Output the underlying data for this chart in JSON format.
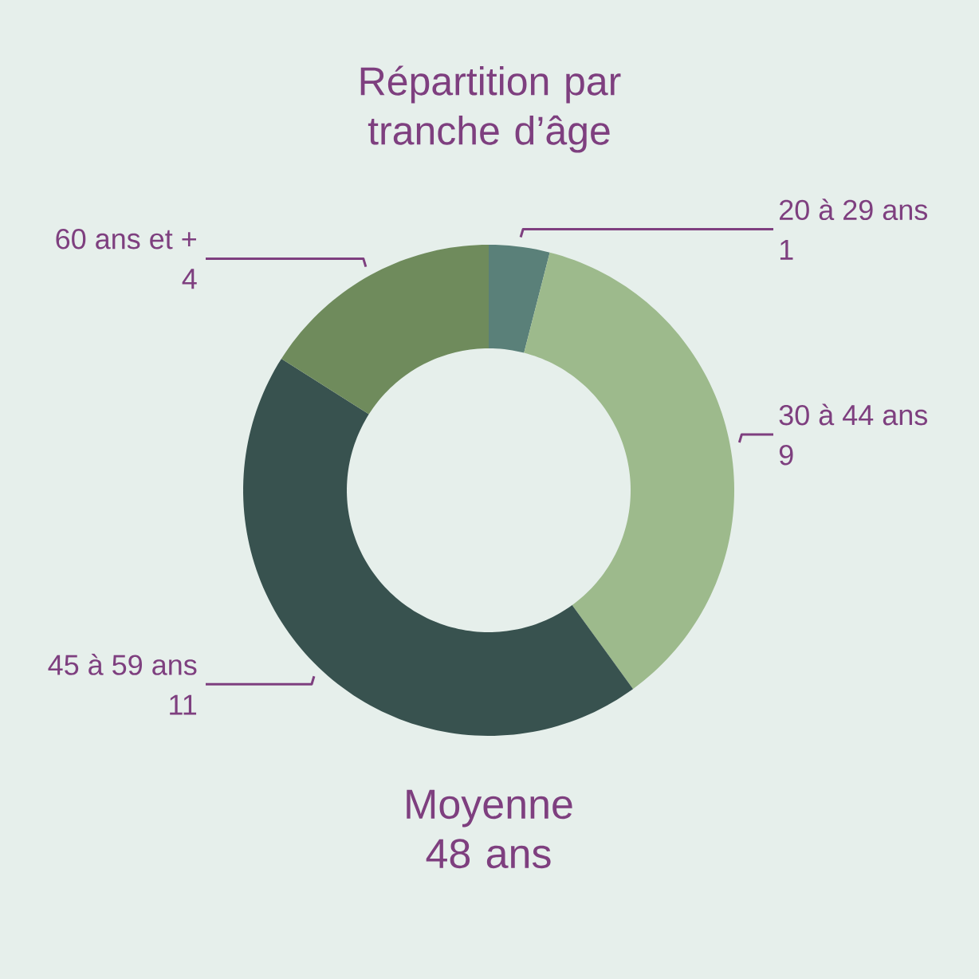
{
  "chart_data": {
    "type": "donut",
    "title": "Répartition par tranche d’âge",
    "categories": [
      "20 à 29 ans",
      "30 à 44 ans",
      "45 à 59 ans",
      "60 ans et +"
    ],
    "values": [
      1,
      9,
      11,
      4
    ],
    "colors": [
      "#5a8079",
      "#9dba8c",
      "#38524f",
      "#6f8b5c"
    ],
    "data_labels": true,
    "annotations": [
      "Moyenne 48 ans"
    ]
  }
}
